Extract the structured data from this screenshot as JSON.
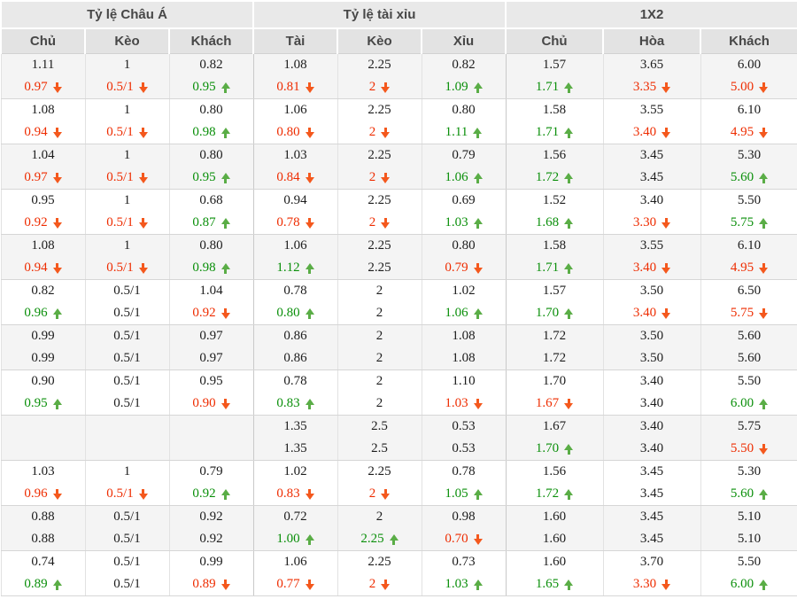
{
  "colors": {
    "up_text": "#0a8f0a",
    "up_arrow": "#5aad46",
    "down_text": "#ee2c00",
    "down_arrow": "#f4581d",
    "header_bg": "#e8e8e8",
    "row_alt_bg": "#f4f4f4"
  },
  "icons": {
    "trend_up": "up-arrow-icon",
    "trend_down": "down-arrow-icon"
  },
  "table": {
    "groups": [
      {
        "label": "Tỷ lệ Châu Á",
        "columns": [
          "Chủ",
          "Kèo",
          "Khách"
        ]
      },
      {
        "label": "Tỷ lệ tài xỉu",
        "columns": [
          "Tài",
          "Kèo",
          "Xỉu"
        ]
      },
      {
        "label": "1X2",
        "columns": [
          "Chủ",
          "Hòa",
          "Khách"
        ]
      }
    ],
    "rows": [
      {
        "cells": [
          {
            "top": "1.11",
            "bottom": "0.97",
            "trend": "down"
          },
          {
            "top": "1",
            "bottom": "0.5/1",
            "trend": "down"
          },
          {
            "top": "0.82",
            "bottom": "0.95",
            "trend": "up"
          },
          {
            "top": "1.08",
            "bottom": "0.81",
            "trend": "down"
          },
          {
            "top": "2.25",
            "bottom": "2",
            "trend": "down"
          },
          {
            "top": "0.82",
            "bottom": "1.09",
            "trend": "up"
          },
          {
            "top": "1.57",
            "bottom": "1.71",
            "trend": "up"
          },
          {
            "top": "3.65",
            "bottom": "3.35",
            "trend": "down"
          },
          {
            "top": "6.00",
            "bottom": "5.00",
            "trend": "down"
          }
        ]
      },
      {
        "cells": [
          {
            "top": "1.08",
            "bottom": "0.94",
            "trend": "down"
          },
          {
            "top": "1",
            "bottom": "0.5/1",
            "trend": "down"
          },
          {
            "top": "0.80",
            "bottom": "0.98",
            "trend": "up"
          },
          {
            "top": "1.06",
            "bottom": "0.80",
            "trend": "down"
          },
          {
            "top": "2.25",
            "bottom": "2",
            "trend": "down"
          },
          {
            "top": "0.80",
            "bottom": "1.11",
            "trend": "up"
          },
          {
            "top": "1.58",
            "bottom": "1.71",
            "trend": "up"
          },
          {
            "top": "3.55",
            "bottom": "3.40",
            "trend": "down"
          },
          {
            "top": "6.10",
            "bottom": "4.95",
            "trend": "down"
          }
        ]
      },
      {
        "cells": [
          {
            "top": "1.04",
            "bottom": "0.97",
            "trend": "down"
          },
          {
            "top": "1",
            "bottom": "0.5/1",
            "trend": "down"
          },
          {
            "top": "0.80",
            "bottom": "0.95",
            "trend": "up"
          },
          {
            "top": "1.03",
            "bottom": "0.84",
            "trend": "down"
          },
          {
            "top": "2.25",
            "bottom": "2",
            "trend": "down"
          },
          {
            "top": "0.79",
            "bottom": "1.06",
            "trend": "up"
          },
          {
            "top": "1.56",
            "bottom": "1.72",
            "trend": "up"
          },
          {
            "top": "3.45",
            "bottom": "3.45",
            "trend": null
          },
          {
            "top": "5.30",
            "bottom": "5.60",
            "trend": "up"
          }
        ]
      },
      {
        "cells": [
          {
            "top": "0.95",
            "bottom": "0.92",
            "trend": "down"
          },
          {
            "top": "1",
            "bottom": "0.5/1",
            "trend": "down"
          },
          {
            "top": "0.68",
            "bottom": "0.87",
            "trend": "up"
          },
          {
            "top": "0.94",
            "bottom": "0.78",
            "trend": "down"
          },
          {
            "top": "2.25",
            "bottom": "2",
            "trend": "down"
          },
          {
            "top": "0.69",
            "bottom": "1.03",
            "trend": "up"
          },
          {
            "top": "1.52",
            "bottom": "1.68",
            "trend": "up"
          },
          {
            "top": "3.40",
            "bottom": "3.30",
            "trend": "down"
          },
          {
            "top": "5.50",
            "bottom": "5.75",
            "trend": "up"
          }
        ]
      },
      {
        "cells": [
          {
            "top": "1.08",
            "bottom": "0.94",
            "trend": "down"
          },
          {
            "top": "1",
            "bottom": "0.5/1",
            "trend": "down"
          },
          {
            "top": "0.80",
            "bottom": "0.98",
            "trend": "up"
          },
          {
            "top": "1.06",
            "bottom": "1.12",
            "trend": "up"
          },
          {
            "top": "2.25",
            "bottom": "2.25",
            "trend": null
          },
          {
            "top": "0.80",
            "bottom": "0.79",
            "trend": "down"
          },
          {
            "top": "1.58",
            "bottom": "1.71",
            "trend": "up"
          },
          {
            "top": "3.55",
            "bottom": "3.40",
            "trend": "down"
          },
          {
            "top": "6.10",
            "bottom": "4.95",
            "trend": "down"
          }
        ]
      },
      {
        "cells": [
          {
            "top": "0.82",
            "bottom": "0.96",
            "trend": "up"
          },
          {
            "top": "0.5/1",
            "bottom": "0.5/1",
            "trend": null
          },
          {
            "top": "1.04",
            "bottom": "0.92",
            "trend": "down"
          },
          {
            "top": "0.78",
            "bottom": "0.80",
            "trend": "up"
          },
          {
            "top": "2",
            "bottom": "2",
            "trend": null
          },
          {
            "top": "1.02",
            "bottom": "1.06",
            "trend": "up"
          },
          {
            "top": "1.57",
            "bottom": "1.70",
            "trend": "up"
          },
          {
            "top": "3.50",
            "bottom": "3.40",
            "trend": "down"
          },
          {
            "top": "6.50",
            "bottom": "5.75",
            "trend": "down"
          }
        ]
      },
      {
        "cells": [
          {
            "top": "0.99",
            "bottom": "0.99",
            "trend": null
          },
          {
            "top": "0.5/1",
            "bottom": "0.5/1",
            "trend": null
          },
          {
            "top": "0.97",
            "bottom": "0.97",
            "trend": null
          },
          {
            "top": "0.86",
            "bottom": "0.86",
            "trend": null
          },
          {
            "top": "2",
            "bottom": "2",
            "trend": null
          },
          {
            "top": "1.08",
            "bottom": "1.08",
            "trend": null
          },
          {
            "top": "1.72",
            "bottom": "1.72",
            "trend": null
          },
          {
            "top": "3.50",
            "bottom": "3.50",
            "trend": null
          },
          {
            "top": "5.60",
            "bottom": "5.60",
            "trend": null
          }
        ]
      },
      {
        "cells": [
          {
            "top": "0.90",
            "bottom": "0.95",
            "trend": "up"
          },
          {
            "top": "0.5/1",
            "bottom": "0.5/1",
            "trend": null
          },
          {
            "top": "0.95",
            "bottom": "0.90",
            "trend": "down"
          },
          {
            "top": "0.78",
            "bottom": "0.83",
            "trend": "up"
          },
          {
            "top": "2",
            "bottom": "2",
            "trend": null
          },
          {
            "top": "1.10",
            "bottom": "1.03",
            "trend": "down"
          },
          {
            "top": "1.70",
            "bottom": "1.67",
            "trend": "down"
          },
          {
            "top": "3.40",
            "bottom": "3.40",
            "trend": null
          },
          {
            "top": "5.50",
            "bottom": "6.00",
            "trend": "up"
          }
        ]
      },
      {
        "cells": [
          {
            "top": "",
            "bottom": "",
            "trend": null
          },
          {
            "top": "",
            "bottom": "",
            "trend": null
          },
          {
            "top": "",
            "bottom": "",
            "trend": null
          },
          {
            "top": "1.35",
            "bottom": "1.35",
            "trend": null
          },
          {
            "top": "2.5",
            "bottom": "2.5",
            "trend": null
          },
          {
            "top": "0.53",
            "bottom": "0.53",
            "trend": null
          },
          {
            "top": "1.67",
            "bottom": "1.70",
            "trend": "up"
          },
          {
            "top": "3.40",
            "bottom": "3.40",
            "trend": null
          },
          {
            "top": "5.75",
            "bottom": "5.50",
            "trend": "down"
          }
        ]
      },
      {
        "cells": [
          {
            "top": "1.03",
            "bottom": "0.96",
            "trend": "down"
          },
          {
            "top": "1",
            "bottom": "0.5/1",
            "trend": "down"
          },
          {
            "top": "0.79",
            "bottom": "0.92",
            "trend": "up"
          },
          {
            "top": "1.02",
            "bottom": "0.83",
            "trend": "down"
          },
          {
            "top": "2.25",
            "bottom": "2",
            "trend": "down"
          },
          {
            "top": "0.78",
            "bottom": "1.05",
            "trend": "up"
          },
          {
            "top": "1.56",
            "bottom": "1.72",
            "trend": "up"
          },
          {
            "top": "3.45",
            "bottom": "3.45",
            "trend": null
          },
          {
            "top": "5.30",
            "bottom": "5.60",
            "trend": "up"
          }
        ]
      },
      {
        "cells": [
          {
            "top": "0.88",
            "bottom": "0.88",
            "trend": null
          },
          {
            "top": "0.5/1",
            "bottom": "0.5/1",
            "trend": null
          },
          {
            "top": "0.92",
            "bottom": "0.92",
            "trend": null
          },
          {
            "top": "0.72",
            "bottom": "1.00",
            "trend": "up"
          },
          {
            "top": "2",
            "bottom": "2.25",
            "trend": "up"
          },
          {
            "top": "0.98",
            "bottom": "0.70",
            "trend": "down"
          },
          {
            "top": "1.60",
            "bottom": "1.60",
            "trend": null
          },
          {
            "top": "3.45",
            "bottom": "3.45",
            "trend": null
          },
          {
            "top": "5.10",
            "bottom": "5.10",
            "trend": null
          }
        ]
      },
      {
        "cells": [
          {
            "top": "0.74",
            "bottom": "0.89",
            "trend": "up"
          },
          {
            "top": "0.5/1",
            "bottom": "0.5/1",
            "trend": null
          },
          {
            "top": "0.99",
            "bottom": "0.89",
            "trend": "down"
          },
          {
            "top": "1.06",
            "bottom": "0.77",
            "trend": "down"
          },
          {
            "top": "2.25",
            "bottom": "2",
            "trend": "down"
          },
          {
            "top": "0.73",
            "bottom": "1.03",
            "trend": "up"
          },
          {
            "top": "1.60",
            "bottom": "1.65",
            "trend": "up"
          },
          {
            "top": "3.70",
            "bottom": "3.30",
            "trend": "down"
          },
          {
            "top": "5.50",
            "bottom": "6.00",
            "trend": "up"
          }
        ]
      }
    ]
  }
}
